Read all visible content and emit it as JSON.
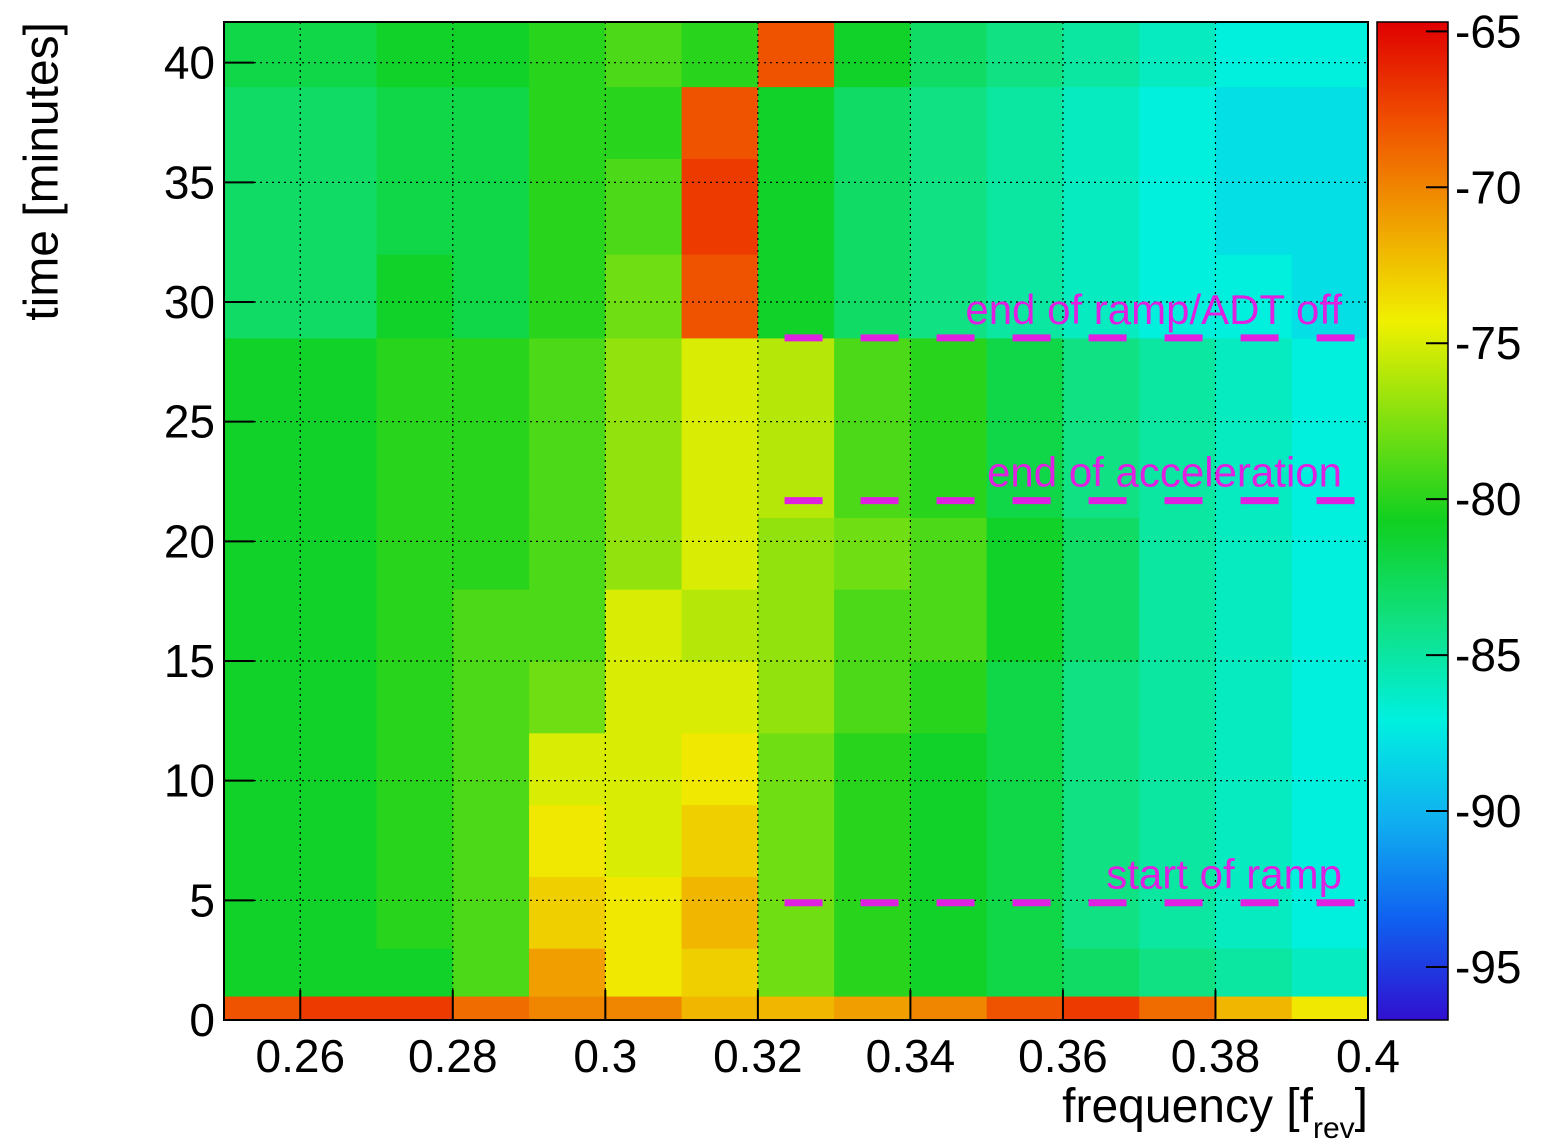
{
  "chart_data": {
    "type": "heatmap",
    "xlabel": {
      "text": "frequency [f",
      "sub": "rev",
      "close": "]"
    },
    "ylabel": "time [minutes]",
    "xlim": [
      0.25,
      0.4
    ],
    "ylim": [
      0,
      41.7
    ],
    "zlim": [
      -96.7,
      -64.7
    ],
    "xticks": [
      0.26,
      0.28,
      0.3,
      0.32,
      0.34,
      0.36,
      0.38,
      0.4
    ],
    "yticks": [
      0,
      5,
      10,
      15,
      20,
      25,
      30,
      35,
      40
    ],
    "zticks": [
      -65,
      -70,
      -75,
      -80,
      -85,
      -90,
      -95
    ],
    "grid": true,
    "colorscale": [
      "#3010d0",
      "#1060f0",
      "#10b0f0",
      "#00f0e0",
      "#10e080",
      "#10d020",
      "#80e010",
      "#f0f000",
      "#f0a000",
      "#f05000",
      "#e00000"
    ],
    "xbins": [
      0.25,
      0.26,
      0.27,
      0.28,
      0.29,
      0.3,
      0.31,
      0.32,
      0.33,
      0.34,
      0.35,
      0.36,
      0.37,
      0.38,
      0.39,
      0.4
    ],
    "ybins": [
      0,
      1,
      3,
      6,
      9,
      12,
      15,
      18,
      21,
      24,
      28.5,
      32,
      36,
      39,
      41.7
    ],
    "z": [
      [
        -68,
        -67,
        -67,
        -69,
        -70,
        -70,
        -72,
        -72,
        -71,
        -70,
        -68,
        -67,
        -69,
        -72,
        -74
      ],
      [
        -81,
        -81,
        -81,
        -79,
        -71,
        -74,
        -73,
        -78,
        -80,
        -81,
        -82,
        -83,
        -84,
        -85,
        -86
      ],
      [
        -81,
        -81,
        -80,
        -79,
        -73,
        -74,
        -72,
        -78,
        -80,
        -81,
        -82,
        -84,
        -85,
        -86,
        -87
      ],
      [
        -81,
        -81,
        -80,
        -79,
        -74,
        -75,
        -73,
        -78,
        -80,
        -81,
        -82,
        -84,
        -85,
        -86,
        -87
      ],
      [
        -81,
        -81,
        -80,
        -79,
        -75,
        -75,
        -74,
        -78,
        -80,
        -81,
        -82,
        -84,
        -85,
        -86,
        -87
      ],
      [
        -81,
        -81,
        -80,
        -79,
        -78,
        -75,
        -75,
        -77,
        -79,
        -80,
        -82,
        -84,
        -85,
        -86,
        -87
      ],
      [
        -81,
        -81,
        -80,
        -79,
        -79,
        -75,
        -76,
        -77,
        -79,
        -79,
        -81,
        -83,
        -85,
        -86,
        -87
      ],
      [
        -81,
        -81,
        -80,
        -80,
        -79,
        -77,
        -75,
        -77,
        -78,
        -79,
        -81,
        -83,
        -85,
        -86,
        -87
      ],
      [
        -81,
        -81,
        -80,
        -80,
        -79,
        -77,
        -75,
        -76,
        -79,
        -80,
        -82,
        -84,
        -85,
        -86,
        -87
      ],
      [
        -81,
        -81,
        -80,
        -80,
        -79,
        -77,
        -75,
        -76,
        -79,
        -80,
        -82,
        -84,
        -85,
        -86,
        -87
      ],
      [
        -83,
        -83,
        -81,
        -82,
        -80,
        -78,
        -68,
        -81,
        -83,
        -84,
        -85,
        -86,
        -87,
        -87,
        -88
      ],
      [
        -83,
        -83,
        -82,
        -82,
        -80,
        -79,
        -67,
        -81,
        -83,
        -84,
        -85,
        -86,
        -87,
        -88,
        -88
      ],
      [
        -83,
        -83,
        -82,
        -82,
        -80,
        -80,
        -68,
        -81,
        -83,
        -84,
        -85,
        -86,
        -87,
        -88,
        -88
      ],
      [
        -82,
        -82,
        -81,
        -81,
        -80,
        -79,
        -80,
        -68,
        -81,
        -83,
        -84,
        -85,
        -86,
        -87,
        -87
      ]
    ],
    "annotations": [
      {
        "text": "end of ramp/ADT off",
        "y": 28.5,
        "x": [
          0.3235,
          0.4
        ]
      },
      {
        "text": "end of acceleration",
        "y": 21.7,
        "x": [
          0.3235,
          0.4
        ]
      },
      {
        "text": "start of ramp",
        "y": 4.9,
        "x": [
          0.3235,
          0.4
        ]
      }
    ]
  }
}
